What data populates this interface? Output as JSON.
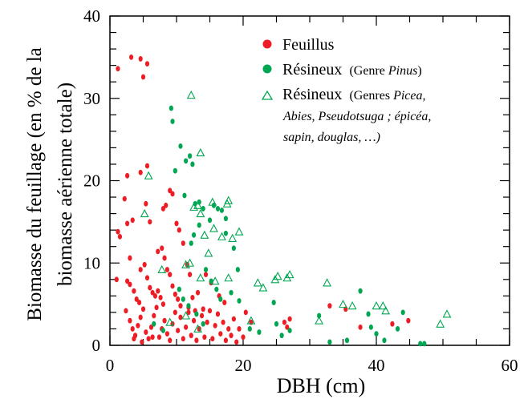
{
  "chart_data": {
    "type": "scatter",
    "xlabel": "DBH (cm)",
    "ylabel_line1": "Biomasse du feuillage (en % de la",
    "ylabel_line2": "biomasse aérienne totale)",
    "xlim": [
      0,
      60
    ],
    "ylim": [
      0,
      40
    ],
    "xticks": [
      0,
      20,
      40,
      60
    ],
    "yticks": [
      0,
      10,
      20,
      30,
      40
    ],
    "grid": false,
    "legend_position": "top-right",
    "series": [
      {
        "name": "Feuillus",
        "marker": "filled-circle",
        "color": "#ee1c24",
        "legend": {
          "label": "Feuillus"
        },
        "points": [
          [
            1.2,
            33.6
          ],
          [
            3.2,
            35.0
          ],
          [
            4.6,
            34.8
          ],
          [
            5.6,
            34.2
          ],
          [
            5.0,
            32.6
          ],
          [
            1.2,
            13.8
          ],
          [
            1.5,
            13.2
          ],
          [
            2.6,
            14.8
          ],
          [
            3.4,
            15.2
          ],
          [
            2.2,
            17.8
          ],
          [
            2.6,
            20.6
          ],
          [
            4.6,
            21.0
          ],
          [
            5.6,
            21.8
          ],
          [
            5.4,
            17.2
          ],
          [
            6.0,
            15.0
          ],
          [
            3.0,
            10.6
          ],
          [
            1.0,
            8.0
          ],
          [
            2.6,
            7.8
          ],
          [
            3.0,
            7.4
          ],
          [
            3.6,
            6.6
          ],
          [
            4.0,
            5.6
          ],
          [
            4.4,
            5.2
          ],
          [
            4.6,
            9.2
          ],
          [
            5.2,
            9.8
          ],
          [
            5.6,
            8.2
          ],
          [
            6.0,
            7.0
          ],
          [
            6.4,
            6.4
          ],
          [
            6.8,
            6.0
          ],
          [
            7.2,
            6.6
          ],
          [
            7.6,
            5.8
          ],
          [
            8.0,
            5.0
          ],
          [
            7.2,
            11.4
          ],
          [
            7.8,
            11.8
          ],
          [
            8.2,
            10.6
          ],
          [
            8.6,
            9.2
          ],
          [
            9.0,
            8.6
          ],
          [
            9.4,
            7.2
          ],
          [
            9.8,
            6.2
          ],
          [
            10.2,
            5.6
          ],
          [
            10.6,
            4.8
          ],
          [
            9.0,
            18.8
          ],
          [
            9.4,
            18.4
          ],
          [
            8.0,
            16.6
          ],
          [
            8.4,
            17.0
          ],
          [
            10.0,
            14.8
          ],
          [
            10.4,
            14.0
          ],
          [
            11.0,
            12.4
          ],
          [
            11.6,
            9.8
          ],
          [
            12.0,
            8.6
          ],
          [
            2.4,
            4.2
          ],
          [
            3.0,
            3.0
          ],
          [
            3.4,
            2.0
          ],
          [
            3.8,
            1.2
          ],
          [
            4.2,
            2.4
          ],
          [
            4.6,
            3.4
          ],
          [
            5.0,
            4.4
          ],
          [
            5.4,
            1.6
          ],
          [
            5.8,
            0.8
          ],
          [
            6.2,
            2.2
          ],
          [
            6.6,
            3.6
          ],
          [
            7.0,
            4.6
          ],
          [
            7.4,
            1.0
          ],
          [
            7.8,
            2.0
          ],
          [
            8.2,
            3.0
          ],
          [
            8.6,
            1.4
          ],
          [
            9.0,
            0.6
          ],
          [
            9.4,
            2.6
          ],
          [
            9.8,
            4.0
          ],
          [
            10.2,
            1.8
          ],
          [
            10.6,
            3.4
          ],
          [
            11.0,
            0.8
          ],
          [
            11.4,
            2.2
          ],
          [
            11.8,
            4.0
          ],
          [
            12.2,
            1.2
          ],
          [
            12.6,
            3.0
          ],
          [
            13.0,
            0.6
          ],
          [
            13.4,
            2.0
          ],
          [
            13.8,
            3.6
          ],
          [
            14.2,
            1.0
          ],
          [
            14.6,
            2.8
          ],
          [
            15.0,
            4.2
          ],
          [
            15.4,
            0.8
          ],
          [
            15.8,
            2.4
          ],
          [
            16.2,
            3.8
          ],
          [
            16.6,
            1.4
          ],
          [
            17.0,
            2.8
          ],
          [
            17.4,
            0.6
          ],
          [
            17.8,
            2.0
          ],
          [
            18.2,
            1.2
          ],
          [
            18.6,
            3.2
          ],
          [
            19.0,
            0.4
          ],
          [
            19.4,
            2.0
          ],
          [
            20.0,
            1.0
          ],
          [
            3.6,
            0.8
          ],
          [
            4.8,
            0.4
          ],
          [
            6.4,
            1.0
          ],
          [
            12.4,
            5.8
          ],
          [
            13.2,
            6.4
          ],
          [
            14.4,
            8.6
          ],
          [
            15.2,
            7.6
          ],
          [
            16.4,
            6.0
          ],
          [
            17.2,
            5.2
          ],
          [
            11.8,
            4.6
          ],
          [
            12.8,
            4.2
          ],
          [
            14.0,
            4.4
          ],
          [
            20.4,
            4.0
          ],
          [
            21.2,
            2.8
          ],
          [
            26.2,
            2.8
          ],
          [
            26.6,
            2.2
          ],
          [
            27.0,
            3.2
          ],
          [
            33.0,
            4.8
          ],
          [
            35.4,
            4.4
          ],
          [
            37.6,
            2.2
          ],
          [
            42.4,
            2.6
          ],
          [
            44.8,
            3.0
          ]
        ]
      },
      {
        "name": "Résineux (Genre Pinus)",
        "marker": "filled-circle",
        "color": "#00a651",
        "legend": {
          "label": "Résineux",
          "note": "(Genre ",
          "note_italic": "Pinus",
          "note_end": ")"
        },
        "points": [
          [
            9.2,
            28.8
          ],
          [
            9.4,
            27.2
          ],
          [
            10.6,
            24.2
          ],
          [
            11.4,
            22.4
          ],
          [
            12.0,
            23.0
          ],
          [
            12.4,
            22.0
          ],
          [
            9.8,
            21.2
          ],
          [
            11.2,
            18.2
          ],
          [
            12.8,
            17.2
          ],
          [
            13.4,
            17.4
          ],
          [
            14.0,
            16.6
          ],
          [
            15.0,
            15.2
          ],
          [
            15.6,
            17.0
          ],
          [
            16.2,
            16.6
          ],
          [
            16.8,
            16.4
          ],
          [
            17.4,
            15.4
          ],
          [
            12.2,
            12.4
          ],
          [
            12.6,
            13.4
          ],
          [
            13.4,
            14.6
          ],
          [
            17.4,
            13.6
          ],
          [
            18.6,
            11.8
          ],
          [
            19.2,
            9.2
          ],
          [
            14.4,
            9.2
          ],
          [
            15.2,
            7.8
          ],
          [
            16.0,
            6.8
          ],
          [
            16.6,
            5.6
          ],
          [
            18.2,
            6.4
          ],
          [
            19.4,
            5.4
          ],
          [
            10.4,
            6.8
          ],
          [
            11.0,
            5.6
          ],
          [
            11.8,
            4.8
          ],
          [
            13.0,
            3.8
          ],
          [
            14.0,
            2.6
          ],
          [
            21.0,
            2.0
          ],
          [
            22.4,
            1.6
          ],
          [
            24.6,
            5.2
          ],
          [
            25.0,
            2.6
          ],
          [
            25.8,
            1.2
          ],
          [
            27.0,
            1.8
          ],
          [
            31.4,
            3.6
          ],
          [
            33.0,
            0.4
          ],
          [
            35.6,
            0.6
          ],
          [
            37.6,
            6.6
          ],
          [
            38.8,
            3.8
          ],
          [
            39.2,
            2.2
          ],
          [
            40.0,
            1.4
          ],
          [
            41.2,
            0.6
          ],
          [
            43.2,
            2.0
          ],
          [
            44.0,
            4.0
          ],
          [
            46.6,
            0.2
          ],
          [
            47.2,
            0.2
          ],
          [
            6.6,
            2.6
          ],
          [
            8.0,
            1.8
          ]
        ]
      },
      {
        "name": "Résineux (Genres Picea, Abies, Pseudotsuga ; épicéa, sapin, douglas, …)",
        "marker": "open-triangle",
        "color": "#00a651",
        "legend": {
          "label": "Résineux",
          "note": "(Genres ",
          "note_italic": "Picea,",
          "line2": "Abies, Pseudotsuga ; épicéa,",
          "line3": "sapin, douglas, …)"
        },
        "points": [
          [
            12.2,
            30.4
          ],
          [
            13.6,
            23.4
          ],
          [
            5.8,
            20.6
          ],
          [
            13.2,
            17.0
          ],
          [
            15.4,
            17.4
          ],
          [
            17.8,
            17.6
          ],
          [
            12.6,
            16.8
          ],
          [
            13.6,
            16.0
          ],
          [
            17.6,
            17.2
          ],
          [
            15.6,
            14.2
          ],
          [
            16.8,
            13.2
          ],
          [
            14.2,
            13.4
          ],
          [
            18.4,
            13.0
          ],
          [
            19.4,
            13.8
          ],
          [
            5.2,
            16.0
          ],
          [
            14.8,
            11.2
          ],
          [
            12.0,
            10.0
          ],
          [
            7.8,
            9.2
          ],
          [
            11.4,
            9.8
          ],
          [
            13.6,
            8.2
          ],
          [
            17.8,
            8.2
          ],
          [
            15.8,
            7.8
          ],
          [
            22.2,
            7.6
          ],
          [
            23.0,
            7.0
          ],
          [
            24.8,
            8.0
          ],
          [
            25.2,
            8.4
          ],
          [
            26.6,
            8.2
          ],
          [
            27.0,
            8.6
          ],
          [
            32.6,
            7.6
          ],
          [
            35.0,
            5.0
          ],
          [
            36.4,
            4.8
          ],
          [
            40.0,
            4.8
          ],
          [
            41.0,
            4.8
          ],
          [
            41.4,
            4.2
          ],
          [
            31.4,
            3.0
          ],
          [
            21.2,
            3.0
          ],
          [
            13.2,
            2.0
          ],
          [
            49.6,
            2.6
          ],
          [
            50.6,
            3.8
          ],
          [
            11.4,
            3.6
          ],
          [
            9.0,
            2.8
          ]
        ]
      }
    ]
  }
}
